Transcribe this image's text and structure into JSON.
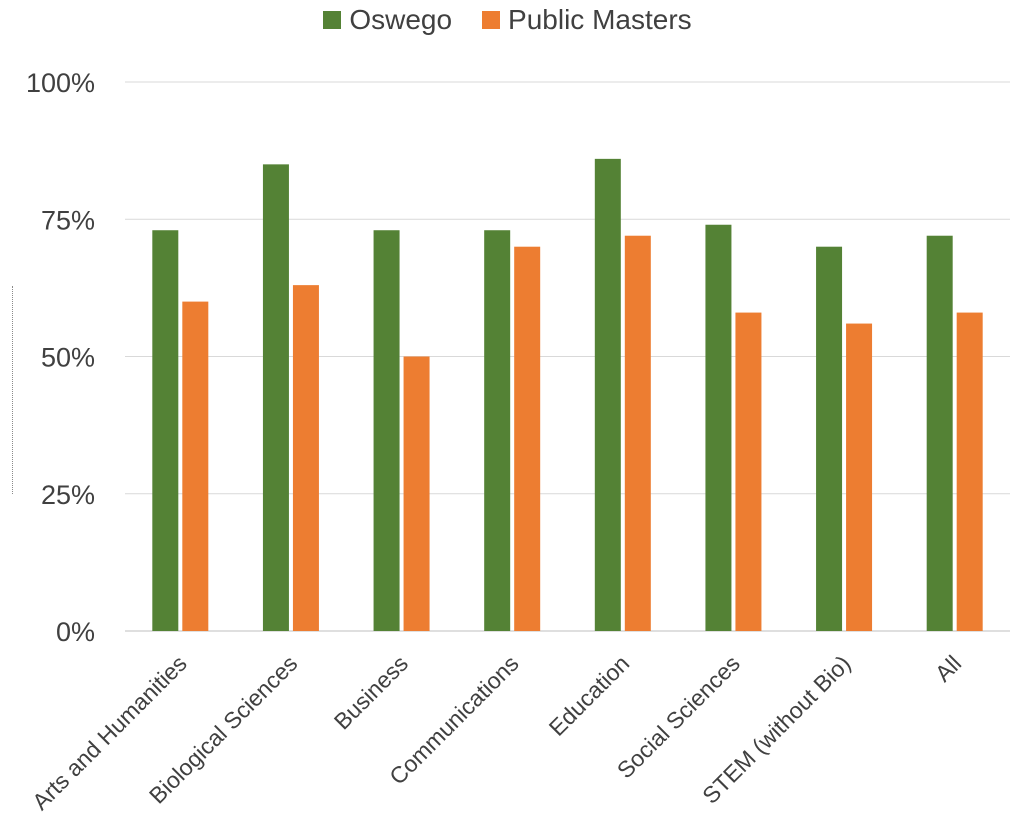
{
  "chart_data": {
    "type": "bar",
    "categories": [
      "Arts and Humanities",
      "Biological Sciences",
      "Business",
      "Communications",
      "Education",
      "Social Sciences",
      "STEM (without Bio)",
      "All"
    ],
    "series": [
      {
        "name": "Oswego",
        "color": "#548235",
        "values": [
          73,
          85,
          73,
          73,
          86,
          74,
          70,
          72
        ]
      },
      {
        "name": "Public Masters",
        "color": "#ED7D31",
        "values": [
          60,
          63,
          50,
          70,
          72,
          58,
          56,
          58
        ]
      }
    ],
    "y_ticks": [
      "0%",
      "25%",
      "50%",
      "75%",
      "100%"
    ],
    "ylim": [
      0,
      100
    ],
    "grid": true,
    "legend_position": "top-center"
  }
}
